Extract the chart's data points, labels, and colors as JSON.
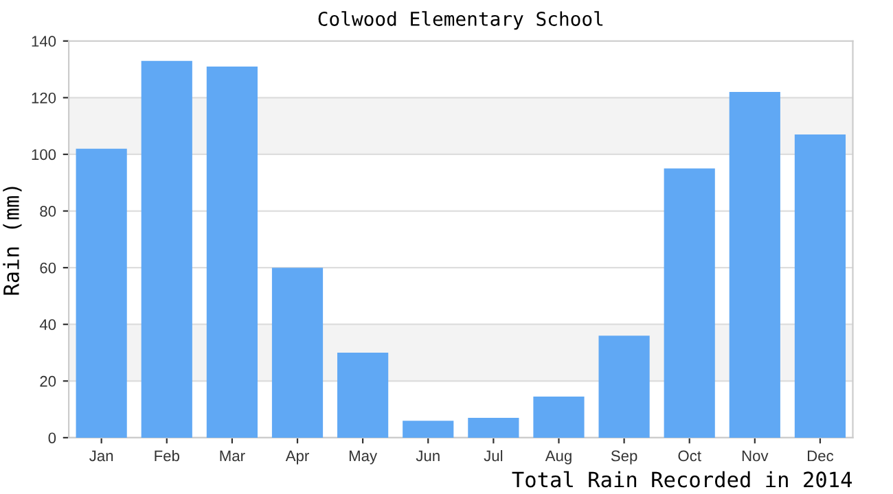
{
  "chart_data": {
    "type": "bar",
    "title": "Colwood Elementary School",
    "ylabel": "Rain (mm)",
    "categories": [
      "Jan",
      "Feb",
      "Mar",
      "Apr",
      "May",
      "Jun",
      "Jul",
      "Aug",
      "Sep",
      "Oct",
      "Nov",
      "Dec"
    ],
    "values": [
      102,
      133,
      131,
      60,
      30,
      6,
      7,
      14.5,
      36,
      95,
      122,
      107
    ],
    "color": "#60a8f4",
    "ylim": [
      0,
      140
    ],
    "yticks": [
      0,
      20,
      40,
      60,
      80,
      100,
      120,
      140
    ],
    "grid": "y",
    "bands": [
      {
        "axis": "y",
        "from": 20,
        "to": 40,
        "color": "#f3f3f3"
      },
      {
        "axis": "y",
        "from": 100,
        "to": 120,
        "color": "#f3f3f3"
      }
    ],
    "annotations": [
      "Total Rain Recorded in 2014"
    ]
  }
}
